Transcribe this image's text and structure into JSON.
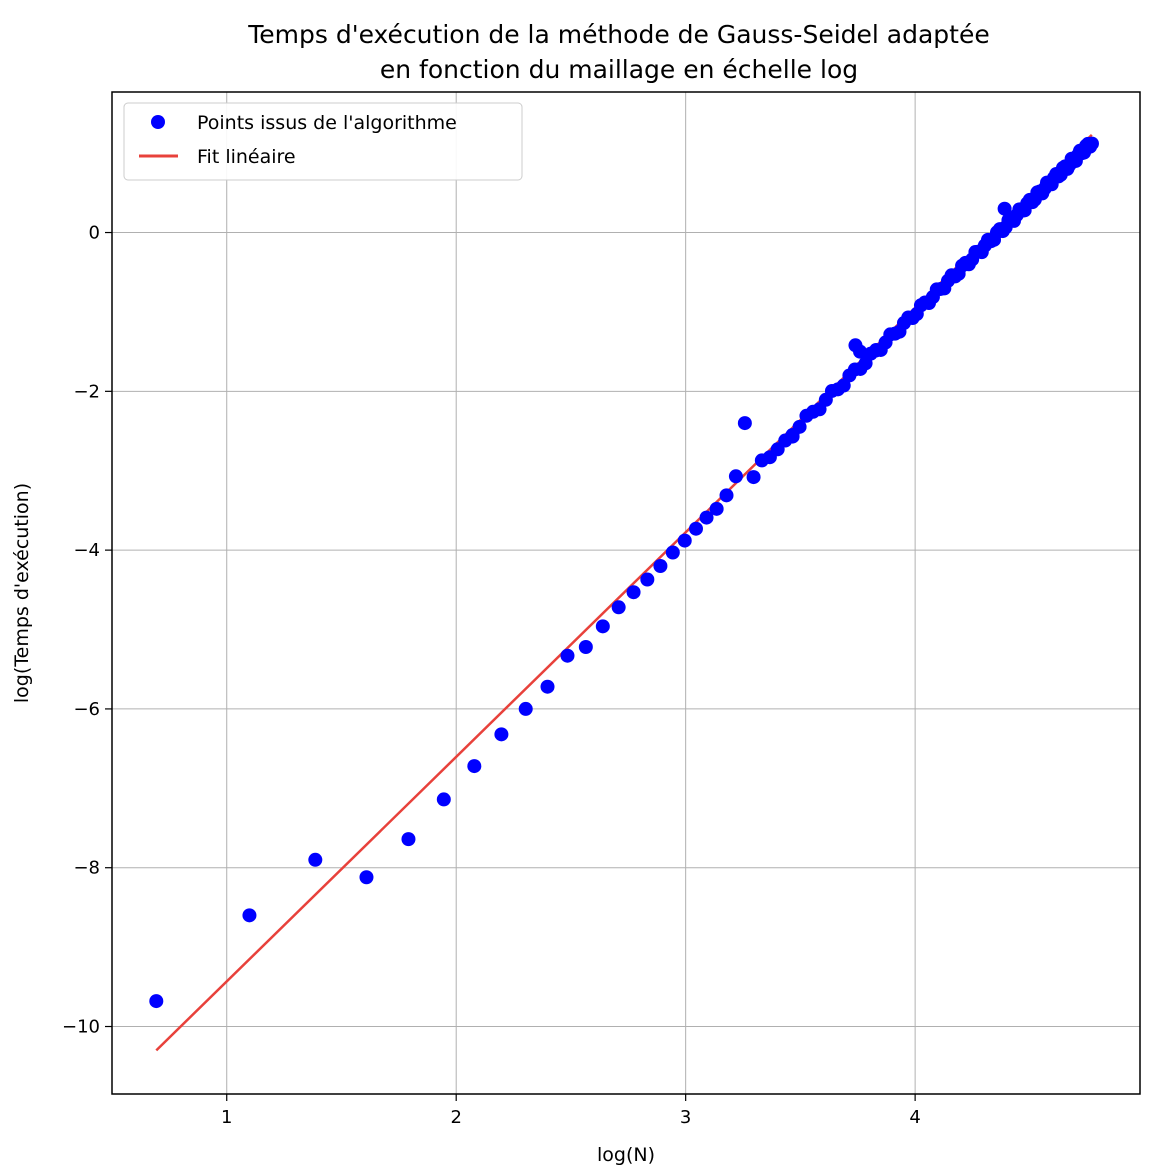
{
  "chart_data": {
    "type": "scatter",
    "title_lines": [
      "Temps d'exécution de la méthode de Gauss-Seidel adaptée",
      "en fonction du maillage en échelle log"
    ],
    "xlabel": "log(N)",
    "ylabel": "log(Temps d'exécution)",
    "xlim": [
      0.5,
      4.98
    ],
    "ylim": [
      -10.85,
      1.77
    ],
    "xticks": [
      1,
      2,
      3,
      4
    ],
    "yticks": [
      0,
      -2,
      -4,
      -6,
      -8,
      -10
    ],
    "xtick_labels": [
      "1",
      "2",
      "3",
      "4"
    ],
    "ytick_labels": [
      "0",
      "−2",
      "−4",
      "−6",
      "−8",
      "−10"
    ],
    "grid": true,
    "legend": {
      "placement": "top-left",
      "entries": [
        "Points issus de l'algorithme",
        "Fit linéaire"
      ]
    },
    "series": [
      {
        "name": "Points issus de l'algorithme",
        "kind": "scatter",
        "color": "#0000ff",
        "x_sparse": [
          0.693,
          1.099,
          1.386,
          1.609,
          1.792,
          1.946,
          2.079,
          2.197,
          2.303,
          2.398,
          2.485,
          2.565,
          2.639,
          2.708,
          2.773,
          2.833,
          2.89,
          2.944,
          2.996,
          3.045,
          3.091,
          3.135,
          3.178,
          3.219,
          3.258,
          3.296,
          3.332,
          3.367,
          3.401,
          3.434,
          3.466
        ],
        "y_sparse": [
          -9.68,
          -8.6,
          -7.9,
          -8.12,
          -7.64,
          -7.14,
          -6.72,
          -6.32,
          -6.0,
          -5.72,
          -5.33,
          -5.22,
          -4.96,
          -4.72,
          -4.53,
          -4.37,
          -4.2,
          -4.03,
          -3.88,
          -3.73,
          -3.59,
          -3.48,
          -3.31,
          -3.07,
          -2.4,
          -3.08,
          -2.87,
          -2.83,
          -2.73,
          -2.62,
          -2.57
        ],
        "dense_x_range": [
          3.49,
          4.77
        ],
        "dense_slope": 2.8,
        "dense_intercept": -12.22,
        "outliers": [
          [
            3.74,
            -1.42
          ],
          [
            3.76,
            -1.5
          ],
          [
            3.83,
            -1.48
          ],
          [
            4.39,
            0.3
          ]
        ]
      },
      {
        "name": "Fit linéaire",
        "kind": "line",
        "color": "#e8413b",
        "x": [
          0.693,
          4.77
        ],
        "y": [
          -10.3,
          1.23
        ]
      }
    ]
  }
}
